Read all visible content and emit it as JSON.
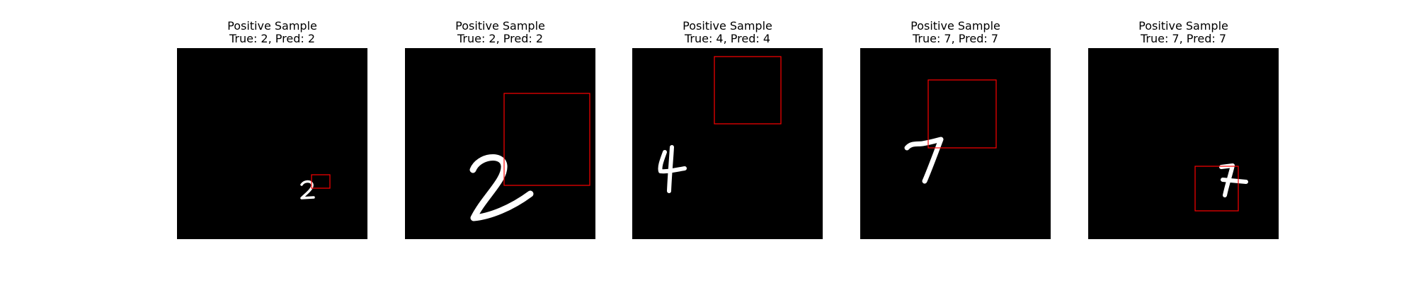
{
  "samples": [
    {
      "heading": "Positive Sample",
      "label": "True: 2, Pred: 2",
      "digit": "2"
    },
    {
      "heading": "Positive Sample",
      "label": "True: 2, Pred: 2",
      "digit": "2"
    },
    {
      "heading": "Positive Sample",
      "label": "True: 4, Pred: 4",
      "digit": "4"
    },
    {
      "heading": "Positive Sample",
      "label": "True: 7, Pred: 7",
      "digit": "7"
    },
    {
      "heading": "Positive Sample",
      "label": "True: 7, Pred: 7",
      "digit": "7"
    }
  ],
  "colors": {
    "background": "#000000",
    "digit": "#ffffff",
    "box": "#ff0000"
  }
}
